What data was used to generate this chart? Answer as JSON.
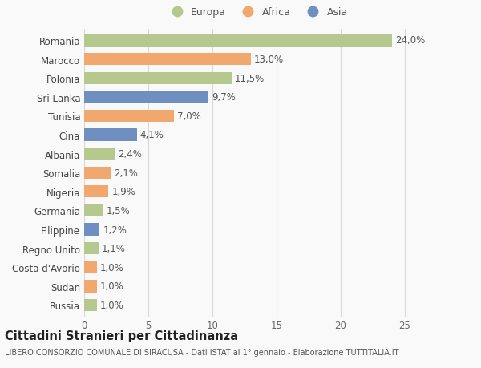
{
  "categories": [
    "Russia",
    "Sudan",
    "Costa d'Avorio",
    "Regno Unito",
    "Filippine",
    "Germania",
    "Nigeria",
    "Somalia",
    "Albania",
    "Cina",
    "Tunisia",
    "Sri Lanka",
    "Polonia",
    "Marocco",
    "Romania"
  ],
  "values": [
    1.0,
    1.0,
    1.0,
    1.1,
    1.2,
    1.5,
    1.9,
    2.1,
    2.4,
    4.1,
    7.0,
    9.7,
    11.5,
    13.0,
    24.0
  ],
  "labels": [
    "1,0%",
    "1,0%",
    "1,0%",
    "1,1%",
    "1,2%",
    "1,5%",
    "1,9%",
    "2,1%",
    "2,4%",
    "4,1%",
    "7,0%",
    "9,7%",
    "11,5%",
    "13,0%",
    "24,0%"
  ],
  "continents": [
    "Europa",
    "Africa",
    "Africa",
    "Europa",
    "Asia",
    "Europa",
    "Africa",
    "Africa",
    "Europa",
    "Asia",
    "Africa",
    "Asia",
    "Europa",
    "Africa",
    "Europa"
  ],
  "colors": {
    "Europa": "#b5c98e",
    "Africa": "#f0a86e",
    "Asia": "#6e8fbf"
  },
  "legend_labels": [
    "Europa",
    "Africa",
    "Asia"
  ],
  "title": "Cittadini Stranieri per Cittadinanza",
  "subtitle": "LIBERO CONSORZIO COMUNALE DI SIRACUSA - Dati ISTAT al 1° gennaio - Elaborazione TUTTITALIA.IT",
  "xlim": [
    0,
    27
  ],
  "xticks": [
    0,
    5,
    10,
    15,
    20,
    25
  ],
  "bg_color": "#f9f9f9",
  "grid_color": "#d8d8d8",
  "bar_height": 0.65,
  "label_fontsize": 8.5,
  "title_fontsize": 10.5,
  "subtitle_fontsize": 7,
  "tick_fontsize": 8.5,
  "legend_fontsize": 9
}
